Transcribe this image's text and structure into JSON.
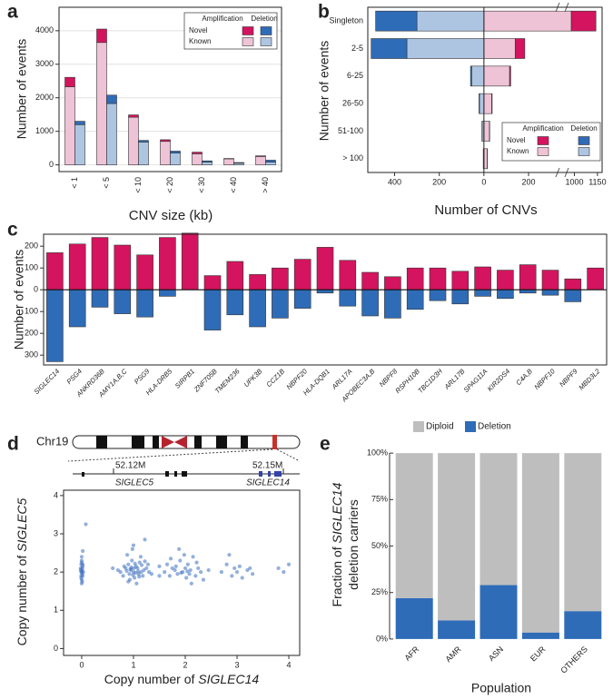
{
  "chart_data": [
    {
      "type": "bar",
      "label": "a",
      "xlabel": "CNV size (kb)",
      "ylabel": "Number of events",
      "categories": [
        "< 1",
        "< 5",
        "< 10",
        "< 20",
        "< 30",
        "< 40",
        "> 40"
      ],
      "series": [
        {
          "name": "Amplification",
          "parts": [
            {
              "name": "Known",
              "color": "#efc3d6",
              "values": [
                2330,
                3650,
                1420,
                700,
                330,
                180,
                250
              ]
            },
            {
              "name": "Novel",
              "color": "#d4145e",
              "values": [
                280,
                400,
                70,
                50,
                50,
                10,
                20
              ]
            }
          ]
        },
        {
          "name": "Deletion",
          "parts": [
            {
              "color": "#aec5e2",
              "values": [
                1200,
                1830,
                680,
                350,
                80,
                50,
                80
              ]
            },
            {
              "color": "#2f6cb7",
              "values": [
                100,
                250,
                50,
                60,
                40,
                20,
                60
              ]
            }
          ]
        }
      ],
      "ylim": [
        -200,
        4700
      ],
      "yticks": [
        0,
        1000,
        2000,
        3000,
        4000
      ],
      "grid": true
    },
    {
      "type": "bar",
      "orientation": "horizontal",
      "label": "b",
      "xlabel": "Number of CNVs",
      "ylabel": "Number of events",
      "categories": [
        "Singleton",
        "2-5",
        "6-25",
        "26-50",
        "51-100",
        "> 100"
      ],
      "series": [
        {
          "name": "Amplification",
          "parts": [
            {
              "name": "Known",
              "color": "#efc3d6",
              "values": [
                980,
                140,
                115,
                35,
                25,
                15
              ]
            },
            {
              "name": "Novel",
              "color": "#d4145e",
              "values": [
                160,
                43,
                5,
                2,
                1,
                1
              ]
            }
          ]
        },
        {
          "name": "Deletion",
          "parts": [
            {
              "color": "#aec5e2",
              "values": [
                -300,
                -345,
                -55,
                -20,
                -8,
                -3
              ]
            },
            {
              "color": "#2f6cb7",
              "values": [
                -185,
                -160,
                -5,
                -2,
                -1,
                0
              ]
            }
          ]
        }
      ],
      "xlim": [
        -520,
        1180
      ],
      "xbreak": [
        330,
        950
      ],
      "xticks": [
        {
          "value": -400,
          "label": "400"
        },
        {
          "value": -200,
          "label": "200"
        },
        0,
        200,
        1000,
        1150
      ]
    },
    {
      "type": "bar",
      "label": "c",
      "ylabel": "Number of events",
      "categories": [
        "SIGLEC14",
        "PSG4",
        "ANKRD36B",
        "AMY1A,B,C",
        "PSG9",
        "HLA-DRB5",
        "SIRPB1",
        "ZNF705B",
        "TMEM236",
        "UPK3B",
        "CCZ1B",
        "NBPF20",
        "HLA-DQB1",
        "ARL17A",
        "APOBEC3A,B",
        "NBPF8",
        "RSPH10B",
        "TBC1D3H",
        "ARL17B",
        "SPAG11A",
        "KIR2DS4",
        "C4A,B",
        "NBPF10",
        "NBPF9",
        "MBD3L2"
      ],
      "series": [
        {
          "color": "#d4145e",
          "values": [
            170,
            210,
            240,
            205,
            160,
            240,
            260,
            65,
            130,
            70,
            100,
            140,
            195,
            135,
            80,
            60,
            100,
            100,
            85,
            105,
            90,
            115,
            90,
            50,
            100
          ]
        },
        {
          "color": "#2f6cb7",
          "values": [
            -330,
            -170,
            -80,
            -110,
            -125,
            -30,
            0,
            -185,
            -115,
            -170,
            -130,
            -85,
            -15,
            -75,
            -120,
            -130,
            -90,
            -50,
            -65,
            -30,
            -40,
            -15,
            -25,
            -55,
            0
          ]
        }
      ],
      "ylim": [
        -345,
        255
      ],
      "yticks": [
        {
          "value": -300,
          "label": "300"
        },
        {
          "value": -200,
          "label": "200"
        },
        {
          "value": -100,
          "label": "100"
        },
        0,
        100,
        200
      ]
    },
    {
      "type": "scatter",
      "label": "d",
      "color": "#3d6fc0",
      "xlabel": [
        "Copy number of ",
        "SIGLEC14"
      ],
      "ylabel": [
        "Copy number of ",
        "SIGLEC5"
      ],
      "annotations": {
        "chromosome": "Chr19",
        "positions": [
          "52.12M",
          "52.15M"
        ],
        "genes": [
          "SIGLEC5",
          "SIGLEC14"
        ]
      },
      "x": [
        0.0,
        0.01,
        -0.01,
        0.02,
        0.0,
        -0.02,
        0.01,
        0.0,
        0.02,
        -0.01,
        0.03,
        0.0,
        0.01,
        -0.02,
        0.0,
        0.02,
        -0.01,
        0.01,
        0.0,
        -0.01,
        0.08,
        0.02,
        0.75,
        0.8,
        0.85,
        0.9,
        0.92,
        0.95,
        0.97,
        1.0,
        1.02,
        1.05,
        1.08,
        1.1,
        1.12,
        1.15,
        1.18,
        1.2,
        1.25,
        1.3,
        0.88,
        0.98,
        1.06,
        1.14,
        0.82,
        0.93,
        1.01,
        1.04,
        0.96,
        1.09,
        0.87,
        1.22,
        0.7,
        1.35,
        1.28,
        0.99,
        1.03,
        0.94,
        1.11,
        1.16,
        0.6,
        1.5,
        1.22,
        1.0,
        0.9,
        1.6,
        1.65,
        1.7,
        1.75,
        1.8,
        1.85,
        1.9,
        1.95,
        2.0,
        2.02,
        2.05,
        2.08,
        2.1,
        2.15,
        2.2,
        2.25,
        2.3,
        2.35,
        1.88,
        1.98,
        2.12,
        1.72,
        2.22,
        1.92,
        2.04,
        1.5,
        2.45,
        1.82,
        2.7,
        2.8,
        2.9,
        2.95,
        3.0,
        3.05,
        3.1,
        3.2,
        3.25,
        2.85,
        3.3,
        3.8,
        3.9,
        4.0
      ],
      "y": [
        2.0,
        2.1,
        1.9,
        2.2,
        1.8,
        2.05,
        1.95,
        2.3,
        2.15,
        1.85,
        2.0,
        2.25,
        1.75,
        2.1,
        2.4,
        1.9,
        2.0,
        2.05,
        1.7,
        2.2,
        3.25,
        2.55,
        2.0,
        1.9,
        2.1,
        2.2,
        1.95,
        2.05,
        2.3,
        2.0,
        1.85,
        2.15,
        2.1,
        1.95,
        2.25,
        2.0,
        1.9,
        2.05,
        2.1,
        2.0,
        2.45,
        2.6,
        1.7,
        2.4,
        2.15,
        1.8,
        2.1,
        1.98,
        2.12,
        2.02,
        2.03,
        2.28,
        2.05,
        1.95,
        2.2,
        1.92,
        2.22,
        2.08,
        1.88,
        2.18,
        2.1,
        1.9,
        2.85,
        2.7,
        1.75,
        2.0,
        2.2,
        1.9,
        2.1,
        2.05,
        1.95,
        2.3,
        2.0,
        2.1,
        1.85,
        2.2,
        1.95,
        2.05,
        2.4,
        1.9,
        2.1,
        2.0,
        1.8,
        2.6,
        2.45,
        1.7,
        2.35,
        2.25,
        1.98,
        2.02,
        2.15,
        2.05,
        2.15,
        2.0,
        2.2,
        1.9,
        2.1,
        2.0,
        2.15,
        1.85,
        2.05,
        2.1,
        2.45,
        1.95,
        2.1,
        2.0,
        2.2
      ],
      "xlim": [
        -0.35,
        4.21
      ],
      "ylim": [
        -0.18,
        4.14
      ],
      "xticks": [
        0,
        1,
        2,
        3,
        4
      ],
      "yticks": [
        0,
        1,
        2,
        3,
        4
      ]
    },
    {
      "type": "bar",
      "label": "e",
      "xlabel": "Population",
      "ylabel": [
        "Fraction of ",
        "SIGLEC14",
        "deletion carriers"
      ],
      "categories": [
        "AFR",
        "AMR",
        "ASN",
        "EUR",
        "OTHERS"
      ],
      "series": [
        {
          "name": "Deletion",
          "color": "#2f6cb7",
          "values": [
            22,
            10,
            29,
            3.5,
            15
          ]
        },
        {
          "name": "Diploid",
          "color": "#bebebe",
          "values": [
            78,
            90,
            71,
            96.5,
            85
          ]
        }
      ],
      "ylim": [
        -2,
        103
      ],
      "yticks": [
        {
          "value": 0,
          "label": "0%"
        },
        {
          "value": 25,
          "label": "25%"
        },
        {
          "value": 50,
          "label": "50%"
        },
        {
          "value": 75,
          "label": "75%"
        },
        {
          "value": 100,
          "label": "100%"
        }
      ]
    }
  ]
}
